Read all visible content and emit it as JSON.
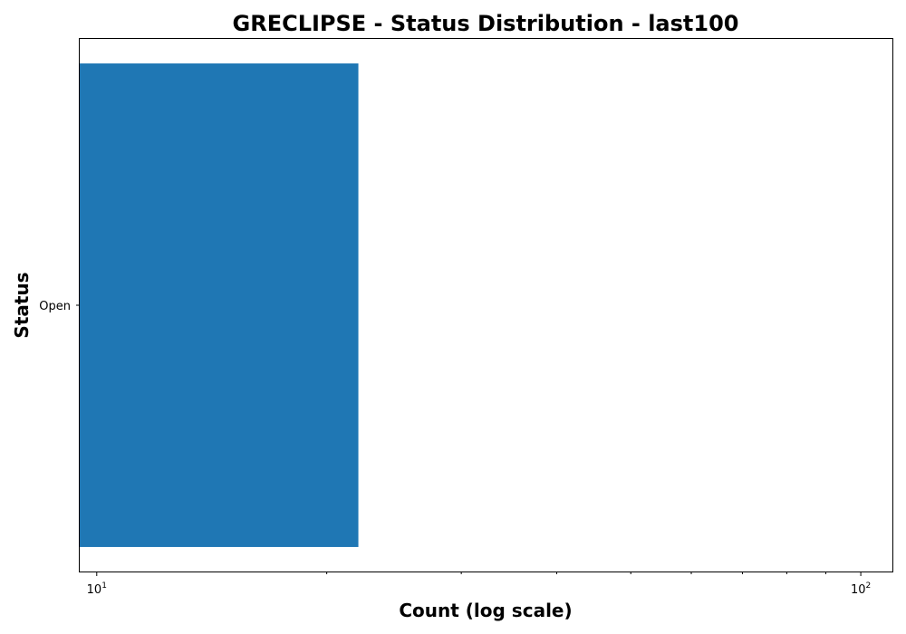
{
  "chart_data": {
    "type": "bar",
    "orientation": "horizontal",
    "title": "GRECLIPSE - Status Distribution - last100",
    "xlabel": "Count (log scale)",
    "ylabel": "Status",
    "x_scale": "log",
    "xlim": [
      9.5,
      110
    ],
    "categories": [
      "Open"
    ],
    "values": [
      22
    ],
    "bar_color": "#1f77b4",
    "x_ticks": [
      {
        "value": 10,
        "base": "10",
        "exp": "1"
      },
      {
        "value": 100,
        "base": "10",
        "exp": "2"
      }
    ],
    "x_minor_ticks": [
      20,
      30,
      40,
      50,
      60,
      70,
      80,
      90
    ],
    "grid": false,
    "legend": "none"
  }
}
